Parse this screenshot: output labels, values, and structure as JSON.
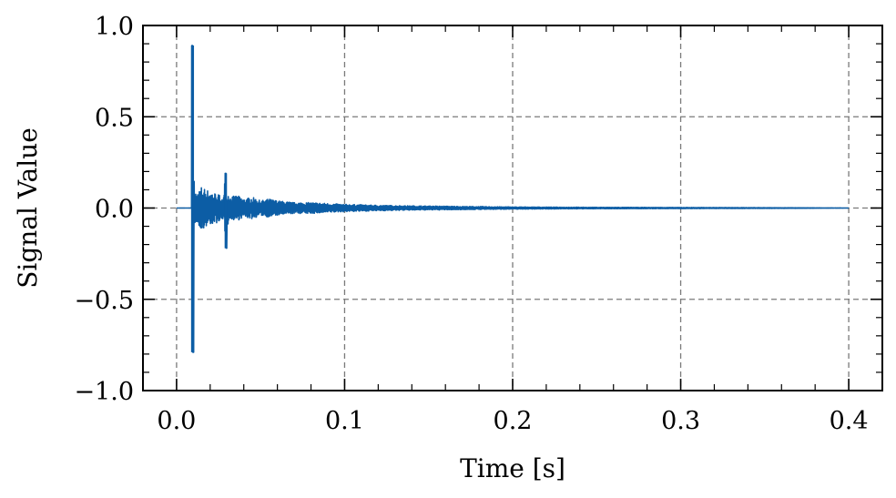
{
  "chart_data": {
    "type": "line",
    "title": "",
    "xlabel": "Time [s]",
    "ylabel": "Signal Value",
    "xlim": [
      -0.02,
      0.42
    ],
    "ylim": [
      -1.0,
      1.0
    ],
    "x_ticks": [
      0.0,
      0.1,
      0.2,
      0.3,
      0.4
    ],
    "x_tick_labels": [
      "0.0",
      "0.1",
      "0.2",
      "0.3",
      "0.4"
    ],
    "y_ticks": [
      -1.0,
      -0.5,
      0.0,
      0.5,
      1.0
    ],
    "y_tick_labels": [
      "−1.0",
      "−0.5",
      "0.0",
      "0.5",
      "1.0"
    ],
    "grid": true,
    "legend": "none",
    "series": [
      {
        "color": "#0C5DA5",
        "description_points": {
          "x": [
            0.0,
            0.009,
            0.0095,
            0.01,
            0.0105,
            0.012,
            0.015,
            0.018,
            0.02,
            0.024,
            0.028,
            0.029,
            0.0295,
            0.03,
            0.032,
            0.036,
            0.04,
            0.045,
            0.05,
            0.055,
            0.06,
            0.07,
            0.08,
            0.09,
            0.1,
            0.11,
            0.12,
            0.14,
            0.16,
            0.18,
            0.2,
            0.25,
            0.3,
            0.35,
            0.4
          ],
          "y": [
            0.0,
            0.0,
            0.89,
            -0.79,
            0.1,
            -0.08,
            0.12,
            -0.1,
            0.09,
            -0.08,
            0.06,
            0.19,
            -0.22,
            0.1,
            -0.06,
            0.07,
            -0.05,
            0.06,
            -0.04,
            0.05,
            -0.04,
            0.03,
            -0.03,
            0.025,
            -0.02,
            0.018,
            -0.015,
            0.012,
            -0.01,
            0.008,
            -0.006,
            0.004,
            -0.003,
            0.002,
            0.0
          ]
        }
      }
    ]
  }
}
